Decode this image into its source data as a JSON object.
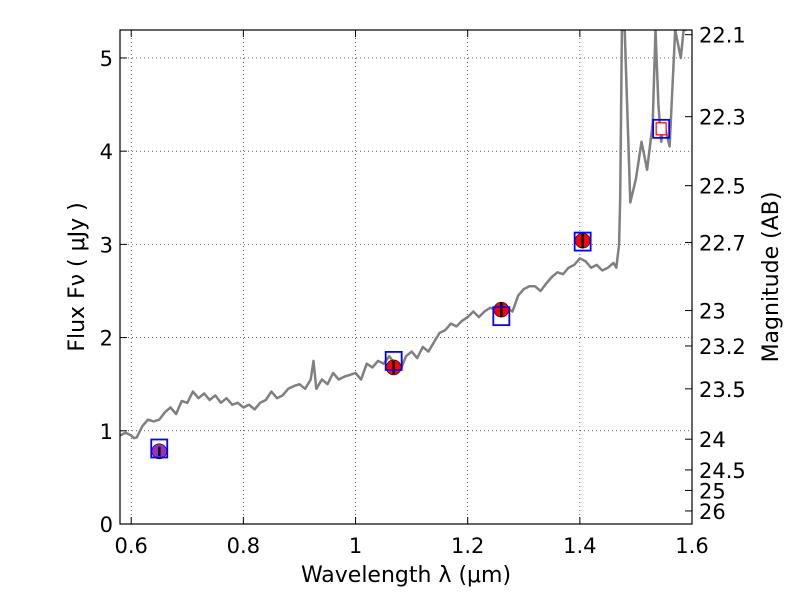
{
  "chart_data": {
    "type": "scatter",
    "xlabel": "Wavelength  λ (μm)",
    "ylabel": "Flux  Fν  ( μJy )",
    "y2label": "Magnitude (AB)",
    "xlim": [
      0.58,
      1.6
    ],
    "ylim": [
      0,
      5.3
    ],
    "xticks": [
      0.6,
      0.8,
      1.0,
      1.2,
      1.4,
      1.6
    ],
    "xtick_labels": [
      "0.6",
      "0.8",
      "1",
      "1.2",
      "1.4",
      "1.6"
    ],
    "yticks": [
      0,
      1,
      2,
      3,
      4,
      5
    ],
    "ytick_labels": [
      "0",
      "1",
      "2",
      "3",
      "4",
      "5"
    ],
    "y2ticks": [
      {
        "label": "22.1",
        "flux": 5.25
      },
      {
        "label": "22.3",
        "flux": 4.37
      },
      {
        "label": "22.5",
        "flux": 3.63
      },
      {
        "label": "22.7",
        "flux": 3.02
      },
      {
        "label": "23",
        "flux": 2.29
      },
      {
        "label": "23.2",
        "flux": 1.91
      },
      {
        "label": "23.5",
        "flux": 1.45
      },
      {
        "label": "24",
        "flux": 0.91
      },
      {
        "label": "24.5",
        "flux": 0.58
      },
      {
        "label": "25",
        "flux": 0.36
      },
      {
        "label": "26",
        "flux": 0.14
      }
    ],
    "grid": true,
    "colors": {
      "model_line": "#808080",
      "observed": "#ff0000",
      "model_photometry": "#0000ff",
      "first_point_fill": "#9b30c0",
      "last_box_fill": "#ffffff",
      "last_box_inner": "#ff0000"
    },
    "model_spectrum": {
      "x": [
        0.58,
        0.59,
        0.6,
        0.605,
        0.61,
        0.62,
        0.63,
        0.64,
        0.65,
        0.66,
        0.67,
        0.68,
        0.69,
        0.7,
        0.71,
        0.72,
        0.73,
        0.74,
        0.75,
        0.76,
        0.77,
        0.78,
        0.79,
        0.8,
        0.81,
        0.82,
        0.83,
        0.84,
        0.85,
        0.86,
        0.87,
        0.88,
        0.89,
        0.9,
        0.91,
        0.92,
        0.925,
        0.93,
        0.94,
        0.95,
        0.96,
        0.97,
        0.98,
        0.99,
        1.0,
        1.01,
        1.02,
        1.03,
        1.04,
        1.05,
        1.06,
        1.07,
        1.08,
        1.09,
        1.1,
        1.11,
        1.12,
        1.13,
        1.14,
        1.15,
        1.16,
        1.17,
        1.18,
        1.19,
        1.2,
        1.21,
        1.22,
        1.23,
        1.24,
        1.25,
        1.26,
        1.27,
        1.28,
        1.29,
        1.3,
        1.31,
        1.32,
        1.33,
        1.34,
        1.35,
        1.36,
        1.37,
        1.38,
        1.39,
        1.4,
        1.41,
        1.42,
        1.43,
        1.44,
        1.45,
        1.46,
        1.465,
        1.47,
        1.472,
        1.475,
        1.48,
        1.49,
        1.5,
        1.51,
        1.52,
        1.53,
        1.535,
        1.54,
        1.545,
        1.55,
        1.56,
        1.57,
        1.58,
        1.585,
        1.59
      ],
      "y": [
        0.95,
        0.98,
        0.95,
        0.92,
        0.93,
        1.05,
        1.12,
        1.1,
        1.12,
        1.2,
        1.25,
        1.18,
        1.32,
        1.3,
        1.42,
        1.35,
        1.4,
        1.33,
        1.38,
        1.3,
        1.35,
        1.28,
        1.3,
        1.25,
        1.28,
        1.23,
        1.3,
        1.33,
        1.42,
        1.35,
        1.38,
        1.45,
        1.48,
        1.5,
        1.45,
        1.55,
        1.75,
        1.45,
        1.55,
        1.5,
        1.62,
        1.55,
        1.58,
        1.6,
        1.62,
        1.55,
        1.72,
        1.68,
        1.75,
        1.72,
        1.8,
        1.72,
        1.65,
        1.8,
        1.85,
        1.78,
        1.9,
        1.85,
        1.95,
        2.05,
        2.08,
        2.15,
        2.12,
        2.18,
        2.22,
        2.28,
        2.22,
        2.28,
        2.32,
        2.3,
        2.28,
        2.32,
        2.28,
        2.45,
        2.52,
        2.55,
        2.55,
        2.5,
        2.58,
        2.65,
        2.7,
        2.68,
        2.75,
        2.78,
        2.85,
        2.82,
        2.75,
        2.78,
        2.72,
        2.75,
        2.8,
        2.75,
        3.0,
        3.5,
        5.3,
        5.3,
        3.45,
        3.7,
        4.1,
        3.8,
        4.3,
        5.3,
        4.5,
        4.1,
        4.3,
        4.05,
        5.3,
        5.0,
        5.3,
        5.3
      ]
    },
    "model_photometry": [
      {
        "x": 0.65,
        "y": 0.81
      },
      {
        "x": 1.068,
        "y": 1.75
      },
      {
        "x": 1.26,
        "y": 2.23
      },
      {
        "x": 1.405,
        "y": 3.03
      },
      {
        "x": 1.545,
        "y": 4.24
      }
    ],
    "observed_photometry": [
      {
        "x": 0.65,
        "y": 0.78,
        "err": 0.05
      },
      {
        "x": 1.068,
        "y": 1.68,
        "err": 0.07
      },
      {
        "x": 1.26,
        "y": 2.3,
        "err": 0.08
      },
      {
        "x": 1.405,
        "y": 3.04,
        "err": 0.08
      }
    ]
  }
}
